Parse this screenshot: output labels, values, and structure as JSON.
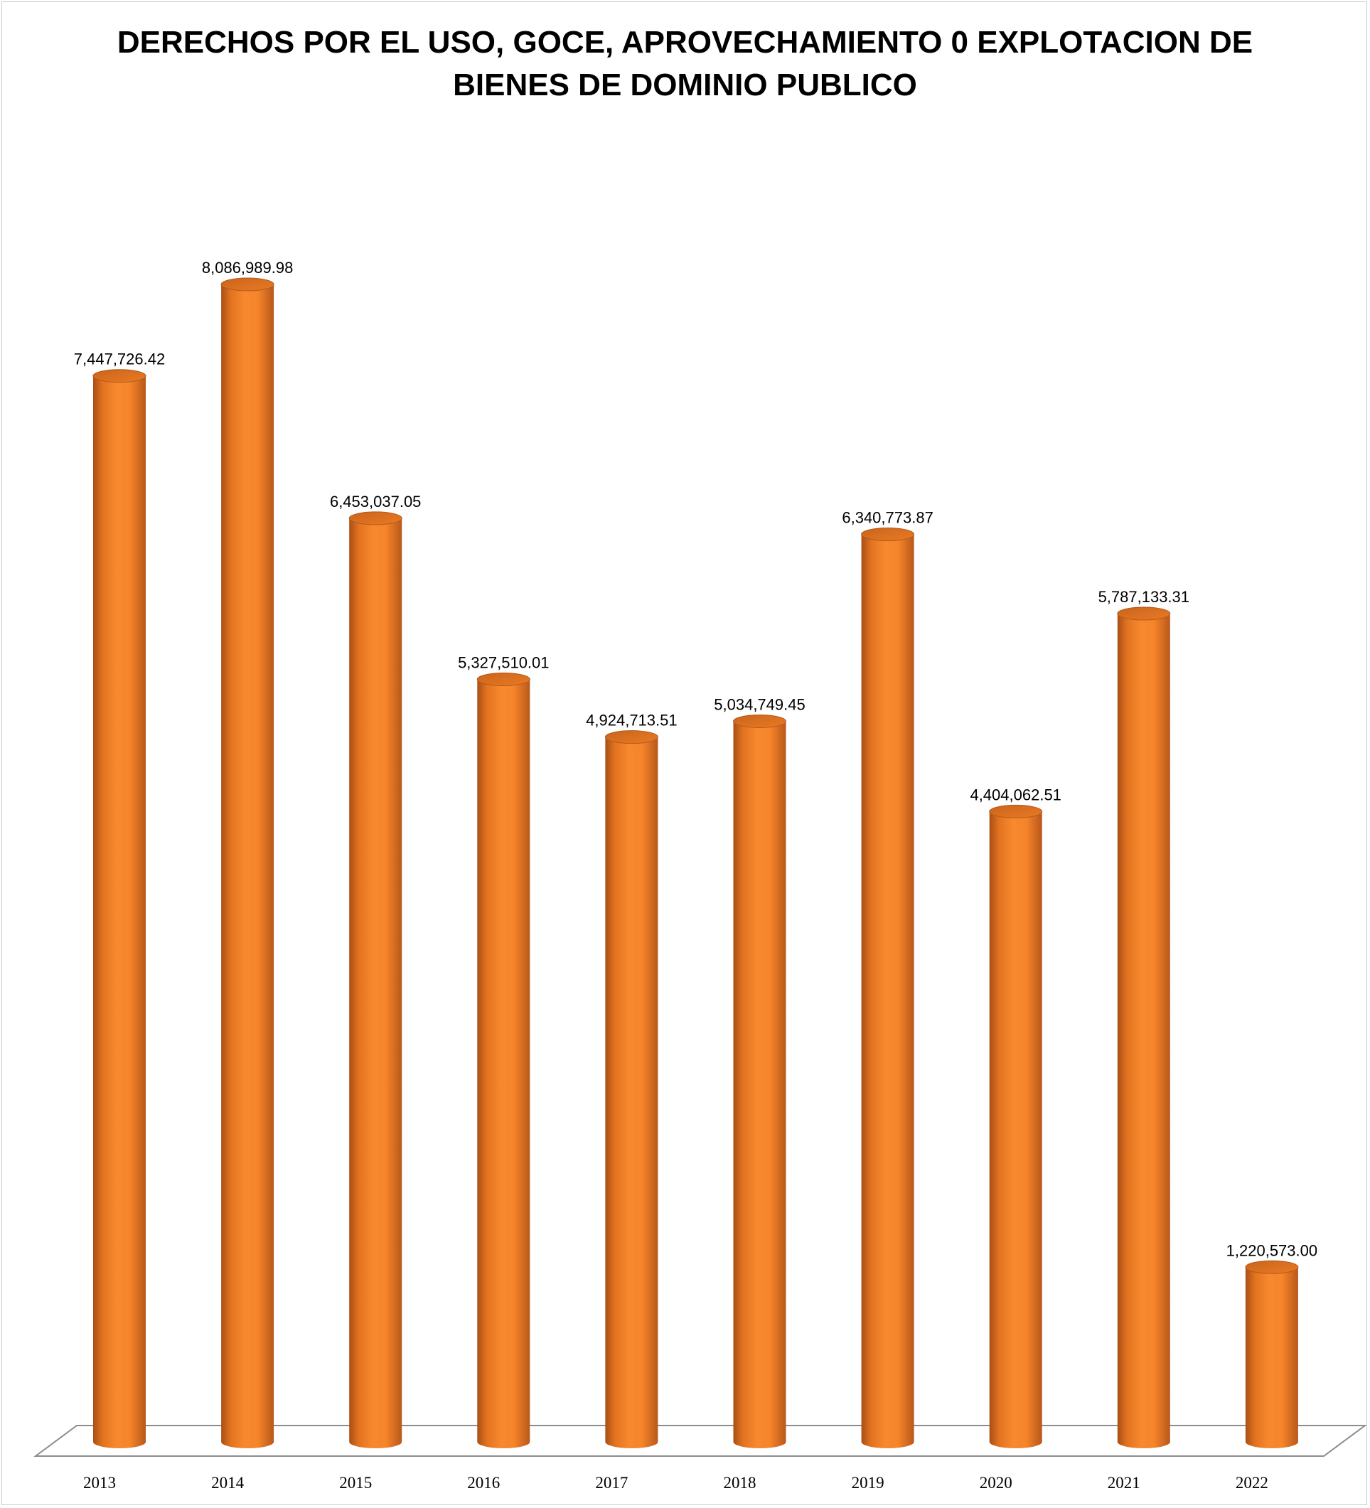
{
  "chart_data": {
    "type": "bar",
    "style": "3d-cylinder",
    "title_lines": [
      "DERECHOS POR EL USO, GOCE, APROVECHAMIENTO 0 EXPLOTACION DE",
      "BIENES DE DOMINIO PUBLICO"
    ],
    "categories": [
      "2013",
      "2014",
      "2015",
      "2016",
      "2017",
      "2018",
      "2019",
      "2020",
      "2021",
      "2022"
    ],
    "values": [
      7447726.42,
      8086989.98,
      6453037.05,
      5327510.01,
      4924713.51,
      5034749.45,
      6340773.87,
      4404062.51,
      5787133.31,
      1220573.0
    ],
    "value_labels": [
      "7,447,726.42",
      "8,086,989.98",
      "6,453,037.05",
      "5,327,510.01",
      "4,924,713.51",
      "5,034,749.45",
      "6,340,773.87",
      "4,404,062.51",
      "5,787,133.31",
      "1,220,573.00"
    ],
    "xlabel": "",
    "ylabel": "",
    "ylim": [
      0,
      9000000
    ],
    "grid": false,
    "legend": "none",
    "colors": {
      "bar_mid": "#f8892f",
      "bar_edge": "#b8581a",
      "bar_top": "#e2731f",
      "axis": "#8c8c8c"
    }
  }
}
